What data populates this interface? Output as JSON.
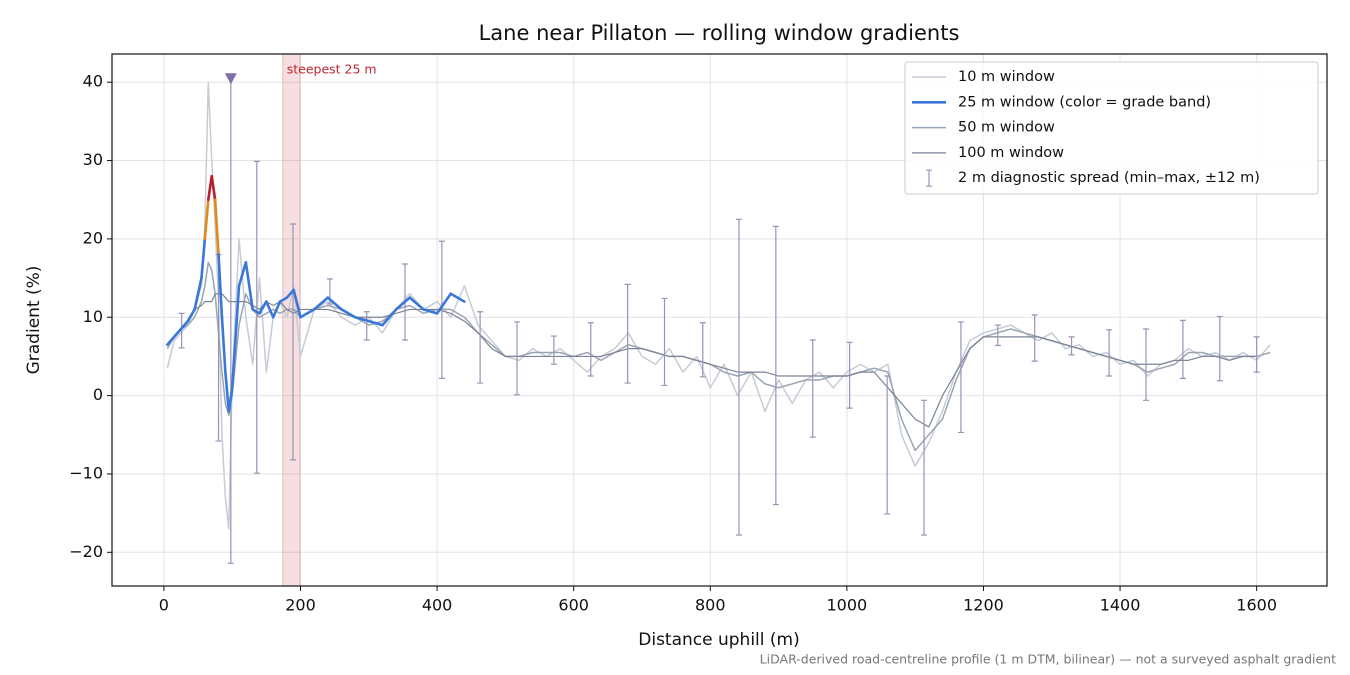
{
  "chart_data": {
    "type": "line",
    "title": "Lane near Pillaton — rolling window gradients",
    "xlabel": "Distance uphill (m)",
    "ylabel": "Gradient (%)",
    "footnote": "LiDAR-derived road-centreline profile (1 m DTM, bilinear) — not a surveyed asphalt gradient",
    "xlim": [
      -76,
      1703
    ],
    "ylim": [
      -24.3,
      43.6
    ],
    "xticks": [
      0,
      200,
      400,
      600,
      800,
      1000,
      1200,
      1400,
      1600
    ],
    "yticks": [
      {
        "value": -20,
        "label": "−20"
      },
      {
        "value": -10,
        "label": "−10"
      },
      0,
      10,
      20,
      30,
      40
    ],
    "grid": true,
    "legend": "upper right",
    "x": [
      5,
      15,
      25,
      35,
      45,
      55,
      60,
      65,
      70,
      75,
      80,
      85,
      90,
      95,
      100,
      110,
      120,
      130,
      140,
      150,
      160,
      170,
      180,
      190,
      200,
      220,
      240,
      260,
      280,
      300,
      320,
      340,
      360,
      380,
      400,
      420,
      440,
      460,
      480,
      500,
      520,
      540,
      560,
      580,
      600,
      620,
      640,
      660,
      680,
      700,
      720,
      740,
      760,
      780,
      800,
      820,
      840,
      860,
      880,
      900,
      920,
      940,
      960,
      980,
      1000,
      1020,
      1040,
      1060,
      1080,
      1100,
      1120,
      1140,
      1160,
      1180,
      1200,
      1220,
      1240,
      1260,
      1280,
      1300,
      1320,
      1340,
      1360,
      1380,
      1400,
      1420,
      1440,
      1460,
      1480,
      1500,
      1520,
      1540,
      1560,
      1580,
      1600,
      1620
    ],
    "series": [
      {
        "name": "10 m window",
        "color": "#c5ccd6",
        "width": 1.5,
        "values": [
          3.5,
          7,
          8,
          9,
          11,
          14,
          22,
          40,
          30,
          22,
          12,
          -5,
          -13,
          -17,
          2,
          20,
          10,
          4,
          15,
          3,
          10,
          12,
          10,
          14,
          5,
          11,
          12,
          10,
          9,
          10,
          8,
          11,
          13,
          11,
          12,
          10,
          14,
          9,
          7,
          5,
          4.5,
          6,
          5,
          6,
          4.5,
          3,
          5,
          6,
          8,
          5,
          4,
          6,
          3,
          5,
          1,
          4,
          0,
          3,
          -2,
          2,
          -1,
          2,
          3,
          1,
          3,
          4,
          3,
          4,
          -5,
          -9,
          -6,
          -2,
          3,
          7,
          8,
          8.5,
          9,
          8,
          7,
          8,
          6,
          6.5,
          5,
          5.5,
          4,
          4.5,
          2.5,
          4,
          4.5,
          6,
          5,
          5.5,
          4.5,
          5.5,
          4.5,
          6.5
        ]
      },
      {
        "name": "50 m window",
        "color": "#9aa5b4",
        "width": 1.5,
        "values": [
          6,
          7.5,
          8.5,
          9,
          10,
          12,
          14,
          17,
          16,
          13,
          8,
          3,
          -1,
          -2.5,
          0,
          9,
          13,
          11,
          10,
          10.5,
          11,
          10.5,
          11,
          11,
          10,
          11,
          11.5,
          11,
          10,
          9,
          9.5,
          11,
          11.5,
          10.5,
          11,
          11,
          10,
          8,
          6.5,
          5,
          5,
          5.5,
          5.5,
          5.5,
          5,
          5.5,
          4.5,
          5.5,
          6.5,
          6,
          5.5,
          5,
          5,
          4.5,
          4,
          3,
          2.5,
          3,
          1.5,
          1,
          1.5,
          2,
          2,
          2.5,
          2.5,
          3,
          3.5,
          3,
          -3,
          -7,
          -5,
          -3,
          2,
          6,
          7.5,
          8,
          8.5,
          8,
          7.5,
          7,
          6.5,
          6,
          5.5,
          5,
          4.5,
          4,
          3,
          3.5,
          4,
          5.5,
          5.5,
          5,
          5,
          5,
          5,
          5.5
        ]
      },
      {
        "name": "100 m window",
        "color": "#7b8494",
        "width": 1.2,
        "values": [
          null,
          null,
          null,
          null,
          11,
          11.5,
          12,
          12,
          12,
          13,
          13,
          13,
          12.5,
          12,
          12,
          12,
          12,
          11.5,
          11,
          12,
          11.5,
          12,
          11,
          10.5,
          11,
          11,
          11,
          10.5,
          10,
          10,
          10,
          10.5,
          11,
          11,
          11,
          10.5,
          9.5,
          8,
          6,
          5,
          5,
          5,
          5,
          5,
          5,
          5,
          5,
          5.5,
          6,
          6,
          5.5,
          5,
          5,
          4.5,
          4,
          3.5,
          3,
          3,
          3,
          2.5,
          2.5,
          2.5,
          2.5,
          2.5,
          2.5,
          3,
          3,
          1,
          -1,
          -3,
          -4,
          0,
          3,
          6,
          7.5,
          7.5,
          7.5,
          7.5,
          7.5,
          7,
          6.5,
          6,
          5.5,
          5,
          4.5,
          4,
          4,
          4,
          4.5,
          4.5,
          5,
          5,
          4.5,
          5,
          5,
          null
        ]
      },
      {
        "name": "25 m window (color = grade band)",
        "color": "#3a78d8",
        "width": 2.6,
        "values": [
          6.5,
          7.5,
          8.5,
          9.5,
          11,
          15,
          20,
          25,
          28,
          25,
          18,
          10,
          3,
          -2,
          1,
          14,
          17,
          11,
          10.5,
          12,
          10,
          12,
          12.5,
          13.5,
          10,
          11,
          12.5,
          11,
          10,
          9.5,
          9,
          11,
          12.5,
          11,
          10.5,
          13,
          12,
          null,
          null,
          null,
          null,
          null,
          null,
          null,
          null,
          null,
          null,
          null,
          null,
          null,
          null,
          null,
          null,
          null,
          null,
          null,
          null,
          null,
          null,
          null,
          null,
          null,
          null,
          null,
          null,
          null,
          null,
          null,
          null,
          null,
          null,
          null,
          null,
          null,
          null,
          null,
          null,
          null,
          null,
          null,
          null,
          null,
          null,
          null,
          null,
          null,
          null,
          null,
          null,
          null,
          null,
          null,
          null,
          null,
          null,
          null
        ],
        "colors": [
          "#3a78d8",
          "#3a78d8",
          "#3a78d8",
          "#3a78d8",
          "#3a78d8",
          "#3a78d8",
          "#e08a1a",
          "#b5202b",
          "#b5202b",
          "#e08a1a",
          "#3a78d8",
          "#3a78d8",
          "#3a78d8",
          "#3a78d8",
          "#3a78d8",
          "#3a78d8",
          "#3a78d8",
          "#3a78d8",
          "#3a78d8",
          "#3a78d8",
          "#3a78d8",
          "#3a78d8",
          "#3a78d8",
          "#3a78d8",
          "#3a78d8",
          "#3a78d8",
          "#3a78d8",
          "#3a78d8",
          "#3a78d8",
          "#3a78d8",
          "#3a78d8",
          "#3a78d8",
          "#3a78d8",
          "#3a78d8",
          "#3a78d8",
          "#3a78d8",
          "#3a78d8"
        ]
      }
    ],
    "errorbars": {
      "name": "2 m diagnostic spread (min–max, ±12 m)",
      "color": "#9a92b8",
      "x": [
        26,
        80,
        98,
        136,
        189,
        243,
        297,
        353,
        407,
        463,
        517,
        571,
        625,
        679,
        733,
        789,
        842,
        896,
        950,
        1004,
        1059,
        1113,
        1167,
        1221,
        1275,
        1329,
        1384,
        1438,
        1492,
        1546,
        1600
      ],
      "low": [
        6.1,
        -5.8,
        -21.4,
        -9.9,
        -8.2,
        11.7,
        7.1,
        7.1,
        2.2,
        1.6,
        0.1,
        4.0,
        2.5,
        1.6,
        1.3,
        2.4,
        -17.8,
        -13.9,
        -5.3,
        -1.6,
        -15.1,
        -17.8,
        -4.7,
        6.4,
        4.4,
        5.2,
        2.5,
        -0.6,
        2.2,
        1.9,
        3.0
      ],
      "high": [
        10.5,
        18,
        40.5,
        29.9,
        21.9,
        14.9,
        10.7,
        16.8,
        19.7,
        10.7,
        9.4,
        7.6,
        9.3,
        14.2,
        12.4,
        9.3,
        22.5,
        21.6,
        7.1,
        6.8,
        2.5,
        -0.6,
        9.4,
        9.0,
        10.3,
        7.5,
        8.4,
        8.5,
        9.6,
        10.1,
        7.5
      ]
    },
    "steepest": {
      "label": "steepest 25 m",
      "x0": 174,
      "x1": 199,
      "color": "#c0262f"
    },
    "peak_marker": {
      "x": 98,
      "y": 40.5,
      "color": "#7e6fa6"
    }
  }
}
